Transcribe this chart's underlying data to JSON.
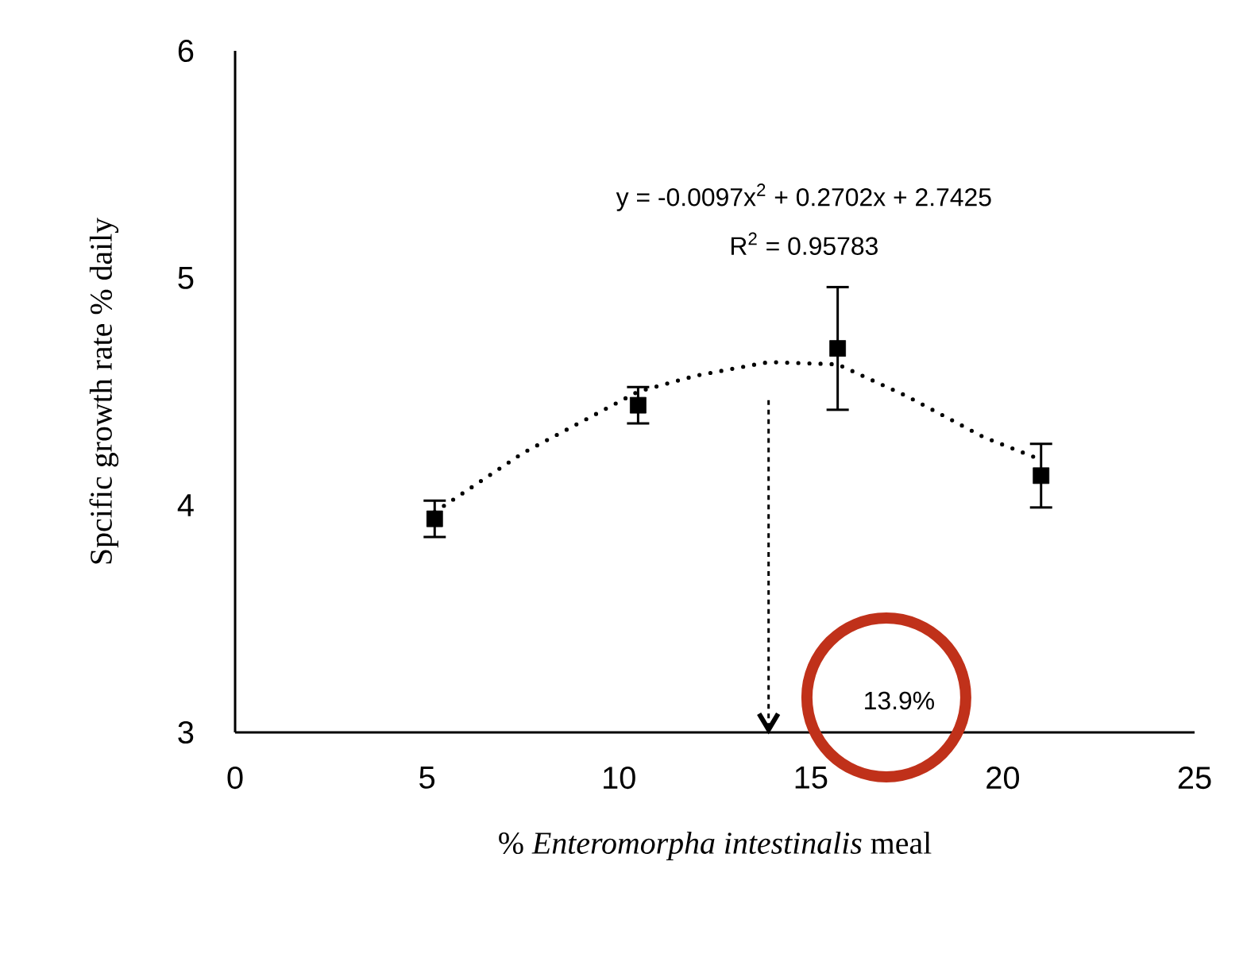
{
  "chart_data": {
    "type": "scatter",
    "xlabel": "% *Enteromorpha intestinalis* meal",
    "ylabel": "Spcific growth rate % daily",
    "annotations": [
      "y = -0.0097x$^{2}$ + 0.2702x + 2.7425",
      "R$^{2}$ = 0.95783"
    ],
    "series": [
      {
        "type": "scatter",
        "color": "#000000",
        "marker": "square",
        "x": [
          5.2,
          10.5,
          15.7,
          21.0
        ],
        "values": [
          3.94,
          4.44,
          4.69,
          4.13
        ],
        "errors": [
          0.08,
          0.08,
          0.27,
          0.14
        ]
      },
      {
        "type": "line",
        "color": "#000000",
        "marker": "none",
        "line_style": "dotted",
        "x": [
          5.2,
          7.5,
          10.5,
          12,
          13.9,
          15.7,
          17.5,
          19.5,
          21.0
        ],
        "values": [
          3.97,
          4.23,
          4.5,
          4.57,
          4.63,
          4.62,
          4.48,
          4.3,
          4.2
        ]
      }
    ],
    "xlim": [
      0,
      25
    ],
    "ylim": [
      3,
      6
    ],
    "xticks": [
      0,
      5,
      10,
      15,
      20,
      25
    ],
    "yticks": [
      3,
      4,
      5,
      6
    ],
    "ref_lines": [
      {
        "axis": "x",
        "value": 13.9,
        "label": "13.9%",
        "line_style": "dashed",
        "color": "#000000"
      }
    ]
  }
}
